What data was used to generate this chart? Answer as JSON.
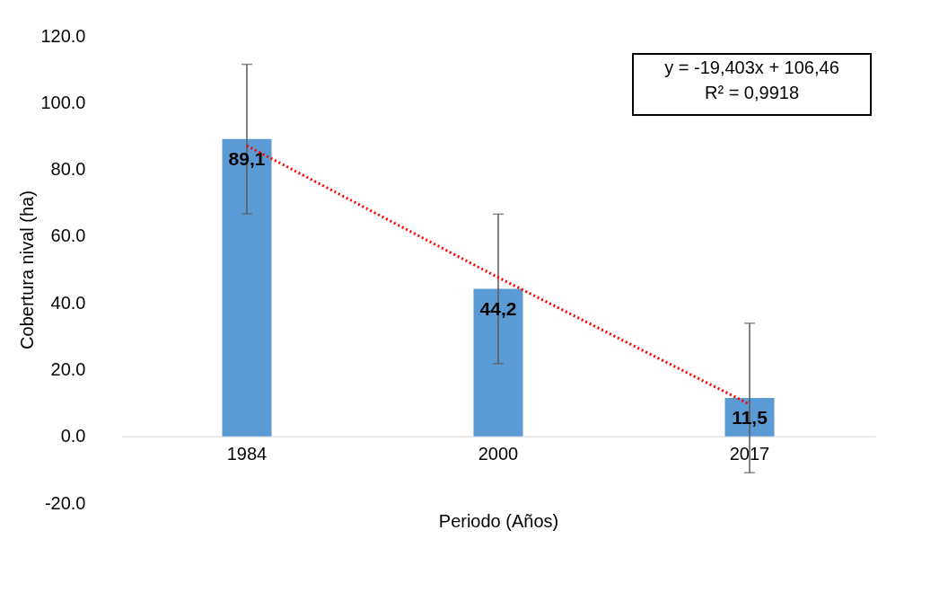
{
  "chart_data": {
    "type": "bar",
    "xlabel": "Periodo (Años)",
    "ylabel": "Cobertura nival (ha)",
    "categories": [
      "1984",
      "2000",
      "2017"
    ],
    "series": [
      {
        "color": "#5b9bd5",
        "values": [
          89.1,
          44.2,
          11.5
        ],
        "errors": [
          22.4,
          22.4,
          22.4
        ],
        "value_labels": [
          "89,1",
          "44,2",
          "11,5"
        ]
      },
      {
        "type": "line",
        "color": "#ff0000",
        "line_style": "dotted",
        "values": [
          87.1,
          47.6,
          9.6
        ]
      }
    ],
    "ylim": [
      -20,
      120
    ],
    "yticks": [
      {
        "value": -20,
        "label": "-20.0"
      },
      {
        "value": 0,
        "label": "0.0"
      },
      {
        "value": 20,
        "label": "20.0"
      },
      {
        "value": 40,
        "label": "40.0"
      },
      {
        "value": 60,
        "label": "60.0"
      },
      {
        "value": 80,
        "label": "80.0"
      },
      {
        "value": 100,
        "label": "100.0"
      },
      {
        "value": 120,
        "label": "120.0"
      }
    ],
    "annotations": [
      "y = -19,403x + 106,46",
      "R² = 0,9918"
    ],
    "grid": false
  }
}
